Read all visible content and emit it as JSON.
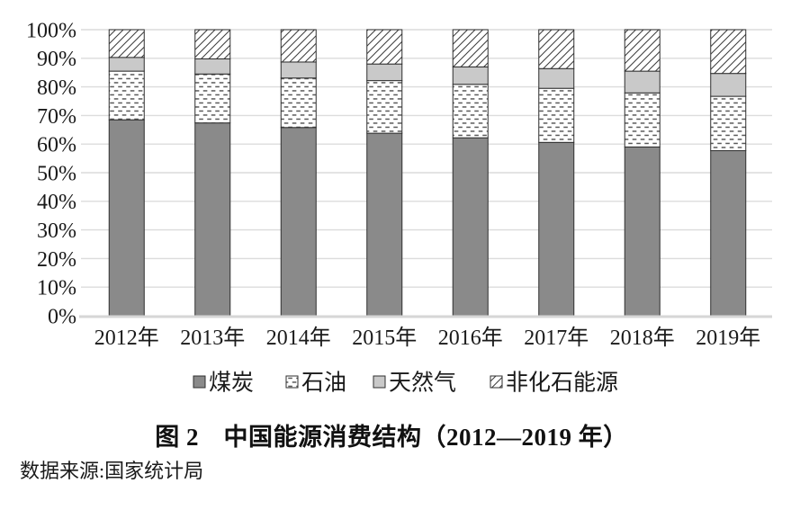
{
  "figure": {
    "title": "图 2　中国能源消费结构（2012—2019 年）",
    "source": "数据来源:国家统计局"
  },
  "colors": {
    "coal_fill": "#8a8a8a",
    "gas_fill": "#c9c9c9",
    "segment_border": "#2f2f2f",
    "grid_line": "#dcdcdc",
    "baseline": "#d6d6d6",
    "oil_dash": "#5a5a5a",
    "hatch_stroke": "#3c3c3c",
    "text": "#1a1a1a",
    "background": "#ffffff"
  },
  "chart_data": {
    "type": "bar",
    "stacked": true,
    "title": "图 2　中国能源消费结构（2012—2019 年）",
    "xlabel": "",
    "ylabel": "",
    "ylim": [
      0,
      100
    ],
    "grid": true,
    "legend_position": "bottom",
    "y_ticks": [
      "0%",
      "10%",
      "20%",
      "30%",
      "40%",
      "50%",
      "60%",
      "70%",
      "80%",
      "90%",
      "100%"
    ],
    "categories": [
      "2012年",
      "2013年",
      "2014年",
      "2015年",
      "2016年",
      "2017年",
      "2018年",
      "2019年"
    ],
    "series": [
      {
        "name": "煤炭",
        "pattern": "solid-dark-gray",
        "values": [
          68.5,
          67.4,
          65.8,
          63.8,
          62.2,
          60.6,
          59.0,
          57.7
        ]
      },
      {
        "name": "石油",
        "pattern": "dashed-dots",
        "values": [
          17.0,
          17.1,
          17.3,
          18.4,
          18.7,
          18.9,
          18.9,
          19.0
        ]
      },
      {
        "name": "天然气",
        "pattern": "solid-light-gray",
        "values": [
          4.8,
          5.3,
          5.6,
          5.8,
          6.1,
          6.9,
          7.6,
          8.0
        ]
      },
      {
        "name": "非化石能源",
        "pattern": "diagonal-hatch",
        "values": [
          9.7,
          10.2,
          11.3,
          12.0,
          13.0,
          13.6,
          14.5,
          15.3
        ]
      }
    ]
  }
}
